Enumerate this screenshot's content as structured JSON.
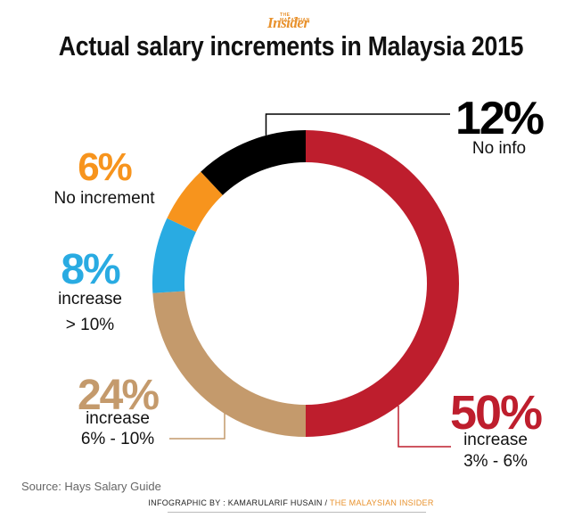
{
  "logo": {
    "small": "THE MALAYSIAN",
    "big": "Insider"
  },
  "title": "Actual salary increments in Malaysia 2015",
  "source": "Source: Hays Salary Guide",
  "credit": {
    "prefix": "INFOGRAPHIC BY : KAMARULARIF HUSAIN / ",
    "brand": "THE MALAYSIAN INSIDER"
  },
  "chart_data": {
    "type": "pie",
    "variant": "donut",
    "title": "Actual salary increments in Malaysia 2015",
    "slices": [
      {
        "pct_text": "50%",
        "value": 50,
        "line1": "increase",
        "line2": "3% - 6%",
        "color": "#be1e2d"
      },
      {
        "pct_text": "24%",
        "value": 24,
        "line1": "increase",
        "line2": "6% - 10%",
        "color": "#c49a6c"
      },
      {
        "pct_text": "8%",
        "value": 8,
        "line1": "increase",
        "line2": "> 10%",
        "color": "#29abe2"
      },
      {
        "pct_text": "6%",
        "value": 6,
        "line1": "No increment",
        "line2": "",
        "color": "#f7941d"
      },
      {
        "pct_text": "12%",
        "value": 12,
        "line1": "No info",
        "line2": "",
        "color": "#000000"
      }
    ]
  }
}
